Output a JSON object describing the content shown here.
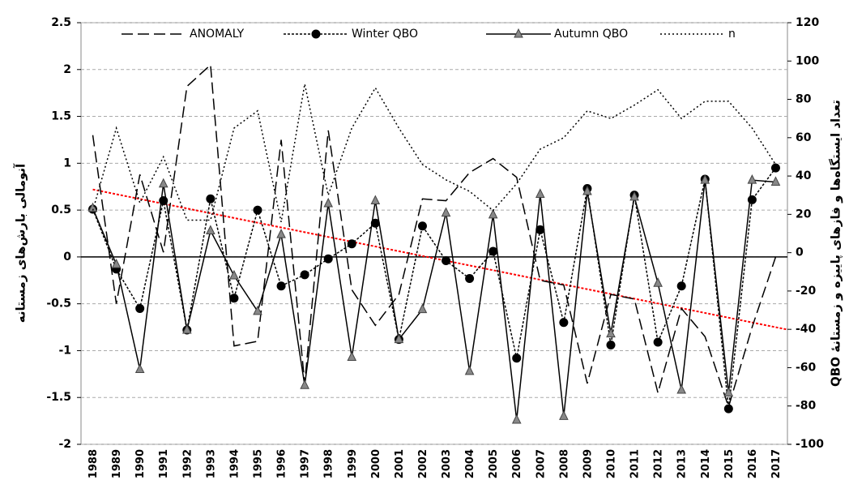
{
  "chart_data": {
    "type": "line",
    "categories": [
      "1988",
      "1989",
      "1990",
      "1991",
      "1992",
      "1993",
      "1994",
      "1995",
      "1996",
      "1997",
      "1998",
      "1999",
      "2000",
      "2001",
      "2002",
      "2003",
      "2004",
      "2005",
      "2006",
      "2007",
      "2008",
      "2009",
      "2010",
      "2011",
      "2012",
      "2013",
      "2014",
      "2015",
      "2016",
      "2017"
    ],
    "y_label": "آنومالی بارش‌های زمستانه",
    "y2_label": "تعداد ایستگاه‌ها و فازهای پاییزه و زمستانهٔ QBO",
    "ylim": [
      -2,
      2.5
    ],
    "yticks": [
      2.5,
      2,
      1.5,
      1,
      0.5,
      0,
      -0.5,
      -1,
      -1.5,
      -2
    ],
    "y2lim": [
      -100,
      120
    ],
    "y2ticks": [
      120,
      100,
      80,
      60,
      40,
      20,
      0,
      -20,
      -40,
      -60,
      -80,
      -100
    ],
    "grid": true,
    "series": [
      {
        "name": "ANOMALY",
        "color": "#000000",
        "dash": "14 6",
        "marker": null,
        "values": [
          1.3,
          -0.5,
          0.88,
          0.05,
          1.82,
          2.05,
          -0.95,
          -0.9,
          1.25,
          -1.35,
          1.35,
          -0.35,
          -0.73,
          -0.4,
          0.62,
          0.6,
          0.9,
          1.05,
          0.85,
          -0.25,
          -0.3,
          -1.35,
          -0.4,
          -0.45,
          -1.45,
          -0.55,
          -0.85,
          -1.6,
          -0.75,
          0.0
        ]
      },
      {
        "name": "Winter QBO",
        "color": "#000000",
        "dash": "3 2",
        "marker": "circle",
        "values": [
          0.51,
          -0.13,
          -0.55,
          0.6,
          -0.78,
          0.62,
          -0.44,
          0.5,
          -0.31,
          -0.19,
          -0.02,
          0.14,
          0.36,
          -0.88,
          0.33,
          -0.04,
          -0.23,
          0.06,
          -1.08,
          0.29,
          -0.7,
          0.73,
          -0.94,
          0.66,
          -0.91,
          -0.31,
          0.83,
          -1.62,
          0.61,
          0.95
        ]
      },
      {
        "name": "Autumn QBO",
        "color": "#000000",
        "dash": null,
        "marker": "triangle",
        "values": [
          0.52,
          -0.08,
          -1.2,
          0.78,
          -0.78,
          0.28,
          -0.2,
          -0.58,
          0.24,
          -1.37,
          0.57,
          -1.07,
          0.6,
          -0.88,
          -0.56,
          0.47,
          -1.22,
          0.45,
          -1.74,
          0.67,
          -1.7,
          0.7,
          -0.82,
          0.64,
          -0.28,
          -1.42,
          0.82,
          -1.45,
          0.82,
          0.8
        ]
      },
      {
        "name": "n",
        "color": "#000000",
        "dash": "2 3",
        "marker": null,
        "axis": "y2",
        "values": [
          22,
          65,
          26,
          50,
          17,
          17,
          65,
          74,
          16,
          88,
          30,
          65,
          86,
          65,
          46,
          38,
          32,
          22,
          36,
          54,
          60,
          74,
          70,
          77,
          85,
          70,
          79,
          79,
          65,
          46
        ]
      }
    ],
    "trend": {
      "color": "#ff0000",
      "values": [
        0.72,
        -0.75
      ]
    }
  }
}
